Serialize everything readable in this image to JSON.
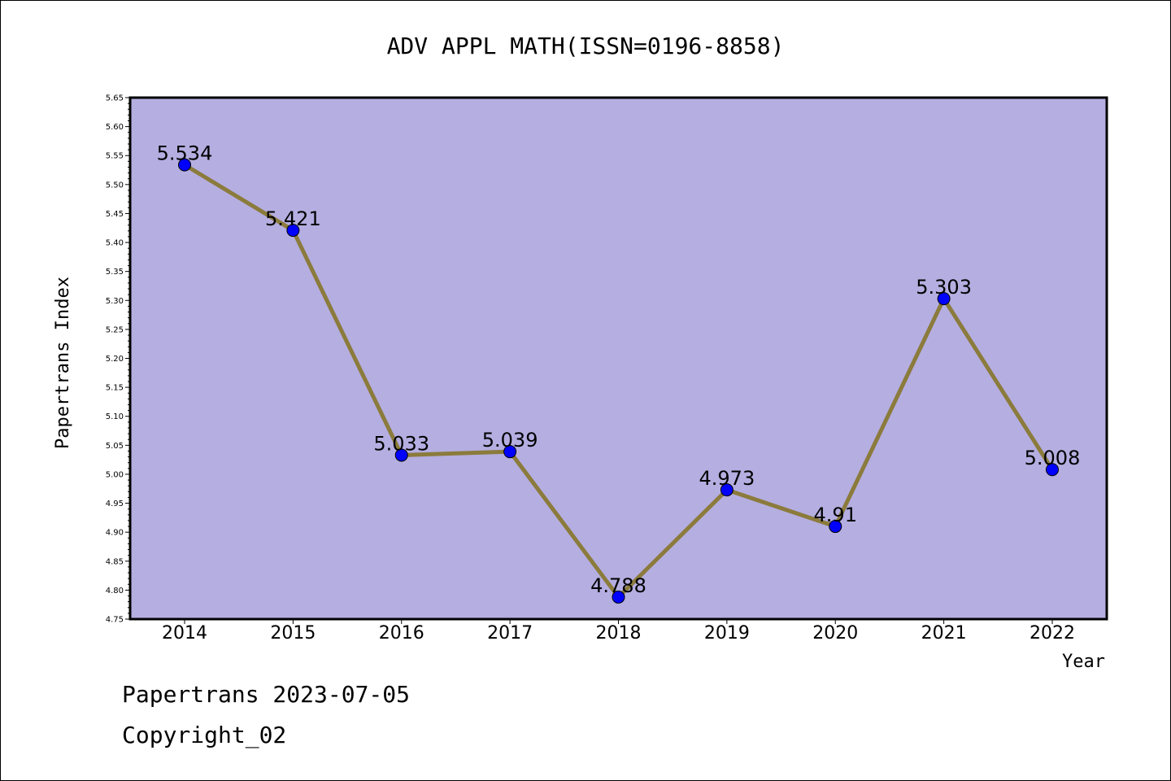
{
  "chart_data": {
    "type": "line",
    "title": "ADV APPL MATH(ISSN=0196-8858)",
    "xlabel": "Year",
    "ylabel": "Papertrans Index",
    "categories": [
      "2014",
      "2015",
      "2016",
      "2017",
      "2018",
      "2019",
      "2020",
      "2021",
      "2022"
    ],
    "values": [
      5.534,
      5.421,
      5.033,
      5.039,
      4.788,
      4.973,
      4.91,
      5.303,
      5.008
    ],
    "data_labels": [
      "5.534",
      "5.421",
      "5.033",
      "5.039",
      "4.788",
      "4.973",
      "4.91",
      "5.303",
      "5.008"
    ],
    "ylim": [
      4.75,
      5.65
    ],
    "yticks": [
      "4.75",
      "4.80",
      "4.85",
      "4.90",
      "4.95",
      "5.00",
      "5.05",
      "5.10",
      "5.15",
      "5.20",
      "5.25",
      "5.30",
      "5.35",
      "5.40",
      "5.45",
      "5.50",
      "5.55",
      "5.60",
      "5.65"
    ],
    "grid": false,
    "legend": "none",
    "colors": {
      "plot_background": "#b5aee1",
      "line": "#8b7b3c",
      "marker": "#0000ff"
    }
  },
  "footer": {
    "line1": "Papertrans 2023-07-05",
    "line2": "Copyright_02"
  }
}
